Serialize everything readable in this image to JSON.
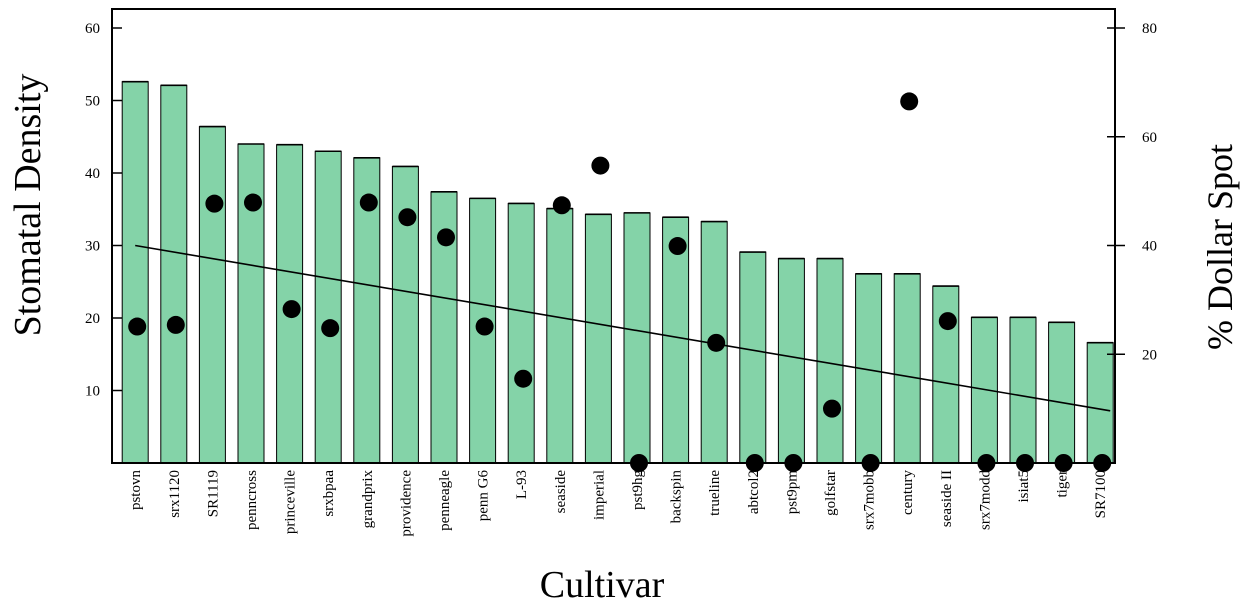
{
  "chart_data": {
    "type": "bar",
    "xlabel": "Cultivar",
    "ylabel": "Stomatal Density",
    "y2label": "% Dollar Spot",
    "ylim": [
      0,
      60
    ],
    "yticks": [
      10,
      20,
      30,
      40,
      50,
      60
    ],
    "y2lim": [
      0,
      80
    ],
    "y2ticks": [
      20,
      40,
      60,
      80
    ],
    "categories": [
      "pstovn",
      "srx1120",
      "SR1119",
      "penncross",
      "princeville",
      "srxbpaa",
      "grandprix",
      "providence",
      "penneagle",
      "penn G6",
      "L-93",
      "seaside",
      "imperial",
      "pst9hg",
      "backspin",
      "trueline",
      "abtcol2",
      "pst9pm",
      "golfstar",
      "srx7mobb",
      "century",
      "seaside II",
      "srx7modd",
      "isiat5",
      "tiger",
      "SR7100"
    ],
    "series": [
      {
        "name": "",
        "type": "bar",
        "axis": "left",
        "color": "#84d3a8",
        "values": [
          52.6,
          52.1,
          46.4,
          44.0,
          43.9,
          43.0,
          42.1,
          40.9,
          37.4,
          36.5,
          35.8,
          35.1,
          34.3,
          34.5,
          33.9,
          33.3,
          29.1,
          28.2,
          28.2,
          26.1,
          26.1,
          24.4,
          20.1,
          20.1,
          19.4,
          16.6
        ]
      },
      {
        "name": "",
        "type": "scatter",
        "axis": "right",
        "color": "#000000",
        "values": [
          25.1,
          25.4,
          47.7,
          47.9,
          28.3,
          24.8,
          47.9,
          45.2,
          41.5,
          25.1,
          15.5,
          47.4,
          54.7,
          0,
          39.9,
          22.1,
          0,
          0,
          10,
          0,
          66.5,
          26.1,
          0,
          0,
          0,
          0
        ]
      },
      {
        "name": "",
        "type": "line",
        "axis": "left",
        "color": "#000000",
        "start": 30.0,
        "end": 7.2
      }
    ]
  }
}
